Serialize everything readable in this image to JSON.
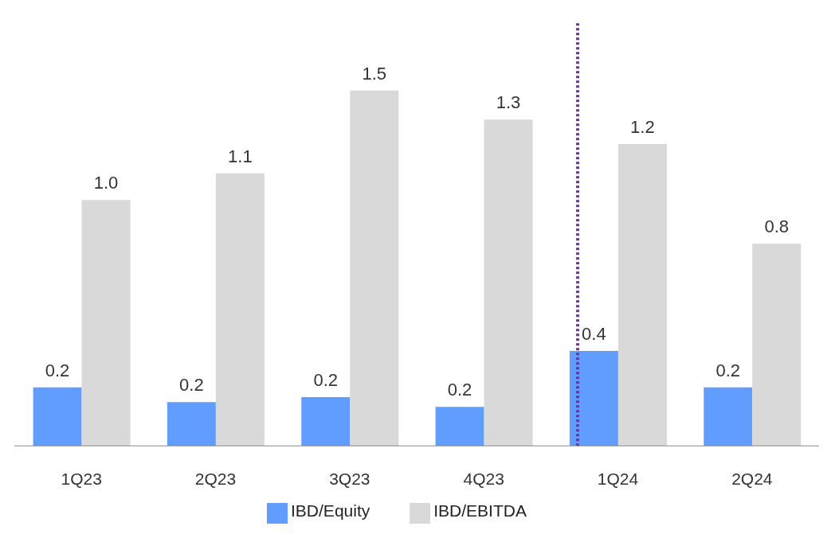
{
  "chart_data": {
    "type": "bar",
    "categories": [
      "1Q23",
      "2Q23",
      "3Q23",
      "4Q23",
      "1Q24",
      "2Q24"
    ],
    "series": [
      {
        "name": "IBD/Equity",
        "color": "#619cff",
        "values": [
          0.24,
          0.18,
          0.2,
          0.16,
          0.39,
          0.24
        ],
        "value_labels": [
          "0.2",
          "0.2",
          "0.2",
          "0.2",
          "0.4",
          "0.2"
        ]
      },
      {
        "name": "IBD/EBITDA",
        "color": "#d9d9d9",
        "values": [
          1.01,
          1.12,
          1.46,
          1.34,
          1.24,
          0.83
        ],
        "value_labels": [
          "1.0",
          "1.1",
          "1.5",
          "1.3",
          "1.2",
          "0.8"
        ]
      }
    ],
    "ylim": [
      0,
      1.74
    ],
    "legend": "bottom",
    "ref_lines": [
      {
        "axis": "x",
        "value": "1Q24",
        "color": "#7030a0",
        "line_style": "dotted"
      }
    ]
  }
}
